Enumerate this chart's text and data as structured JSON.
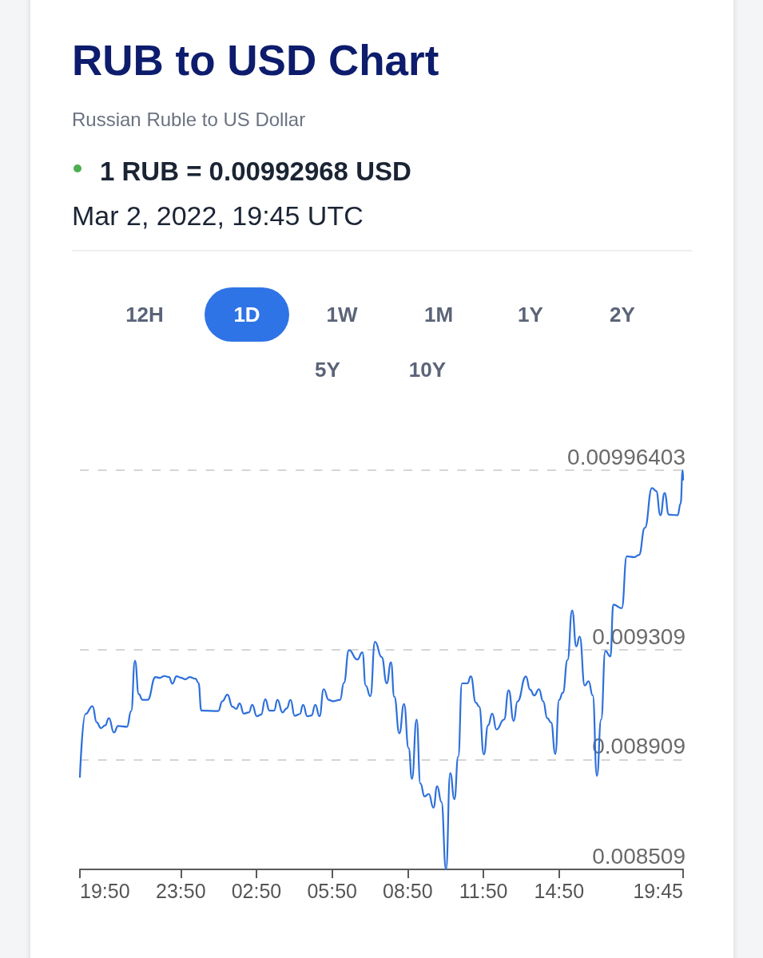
{
  "chart_data": {
    "type": "line",
    "title": "RUB to USD Chart",
    "subtitle": "Russian Ruble to US Dollar",
    "annotations": [
      "1 RUB = 0.00992968 USD",
      "Mar 2, 2022, 19:45 UTC",
      "12H",
      "1D",
      "1W",
      "1M",
      "1Y",
      "2Y",
      "5Y",
      "10Y"
    ],
    "x": [
      "2022-03-01T19:50",
      "2022-03-01T20:03",
      "2022-03-01T20:20",
      "2022-03-01T20:30",
      "2022-03-01T20:40",
      "2022-03-01T20:50",
      "2022-03-01T20:59",
      "2022-03-01T21:11",
      "2022-03-01T21:21",
      "2022-03-01T21:42",
      "2022-03-01T21:52",
      "2022-03-01T22:01",
      "2022-03-01T22:10",
      "2022-03-01T22:19",
      "2022-03-01T22:31",
      "2022-03-01T22:50",
      "2022-03-01T23:00",
      "2022-03-01T23:11",
      "2022-03-01T23:22",
      "2022-03-01T23:30",
      "2022-03-01T23:40",
      "2022-03-01T23:50",
      "2022-03-02T00:01",
      "2022-03-02T00:11",
      "2022-03-02T00:25",
      "2022-03-02T00:32",
      "2022-03-02T00:39",
      "2022-03-02T01:19",
      "2022-03-02T01:29",
      "2022-03-02T01:41",
      "2022-03-02T01:53",
      "2022-03-02T02:02",
      "2022-03-02T02:10",
      "2022-03-02T02:20",
      "2022-03-02T02:32",
      "2022-03-02T02:40",
      "2022-03-02T02:51",
      "2022-03-02T03:01",
      "2022-03-02T03:11",
      "2022-03-02T03:21",
      "2022-03-02T03:32",
      "2022-03-02T03:40",
      "2022-03-02T03:52",
      "2022-03-02T04:02",
      "2022-03-02T04:11",
      "2022-03-02T04:21",
      "2022-03-02T04:33",
      "2022-03-02T04:41",
      "2022-03-02T04:51",
      "2022-03-02T05:01",
      "2022-03-02T05:10",
      "2022-03-02T05:20",
      "2022-03-02T05:30",
      "2022-03-02T05:42",
      "2022-03-02T05:52",
      "2022-03-02T06:09",
      "2022-03-02T06:18",
      "2022-03-02T06:30",
      "2022-03-02T06:50",
      "2022-03-02T07:02",
      "2022-03-02T07:10",
      "2022-03-02T07:21",
      "2022-03-02T07:32",
      "2022-03-02T07:48",
      "2022-03-02T08:00",
      "2022-03-02T08:10",
      "2022-03-02T08:18",
      "2022-03-02T08:30",
      "2022-03-02T08:41",
      "2022-03-02T08:52",
      "2022-03-02T09:00",
      "2022-03-02T09:11",
      "2022-03-02T09:20",
      "2022-03-02T09:30",
      "2022-03-02T09:40",
      "2022-03-02T09:51",
      "2022-03-02T10:00",
      "2022-03-02T10:10",
      "2022-03-02T10:21",
      "2022-03-02T10:31",
      "2022-03-02T10:41",
      "2022-03-02T10:50",
      "2022-03-02T10:59",
      "2022-03-02T11:12",
      "2022-03-02T11:20",
      "2022-03-02T11:32",
      "2022-03-02T11:40",
      "2022-03-02T11:51",
      "2022-03-02T12:01",
      "2022-03-02T12:11",
      "2022-03-02T12:21",
      "2022-03-02T12:39",
      "2022-03-02T12:50",
      "2022-03-02T13:02",
      "2022-03-02T13:11",
      "2022-03-02T13:31",
      "2022-03-02T13:41",
      "2022-03-02T13:51",
      "2022-03-02T14:02",
      "2022-03-02T14:12",
      "2022-03-02T14:22",
      "2022-03-02T14:31",
      "2022-03-02T14:41",
      "2022-03-02T14:50",
      "2022-03-02T14:59",
      "2022-03-02T15:10",
      "2022-03-02T15:21",
      "2022-03-02T15:31",
      "2022-03-02T15:39",
      "2022-03-02T15:51",
      "2022-03-02T16:00",
      "2022-03-02T16:10",
      "2022-03-02T16:20",
      "2022-03-02T16:30",
      "2022-03-02T16:40",
      "2022-03-02T16:52",
      "2022-03-02T16:59",
      "2022-03-02T17:19",
      "2022-03-02T17:31",
      "2022-03-02T17:49",
      "2022-03-02T18:00",
      "2022-03-02T18:14",
      "2022-03-02T18:31",
      "2022-03-02T18:41",
      "2022-03-02T18:51",
      "2022-03-02T19:01",
      "2022-03-02T19:11",
      "2022-03-02T19:32",
      "2022-03-02T19:39",
      "2022-03-02T19:44",
      "2022-03-02T19:45"
    ],
    "values": [
      0.008846,
      0.009075,
      0.009104,
      0.009045,
      0.009024,
      0.009034,
      0.00906,
      0.009008,
      0.009032,
      0.009029,
      0.009086,
      0.00927,
      0.009148,
      0.009127,
      0.009127,
      0.00921,
      0.009207,
      0.009214,
      0.00921,
      0.009186,
      0.009213,
      0.009208,
      0.009202,
      0.00921,
      0.009204,
      0.009189,
      0.009088,
      0.009086,
      0.009122,
      0.009146,
      0.009102,
      0.009094,
      0.009114,
      0.009077,
      0.009081,
      0.009109,
      0.009067,
      0.009073,
      0.009129,
      0.009088,
      0.009088,
      0.009127,
      0.009081,
      0.009096,
      0.009127,
      0.009069,
      0.009075,
      0.009109,
      0.009067,
      0.00907,
      0.009109,
      0.009067,
      0.009166,
      0.009127,
      0.009122,
      0.009127,
      0.009189,
      0.009308,
      0.009274,
      0.0093,
      0.009179,
      0.00914,
      0.009339,
      0.009283,
      0.009187,
      0.009264,
      0.009138,
      0.009005,
      0.009112,
      0.008951,
      0.008839,
      0.009055,
      0.008822,
      0.008775,
      0.008784,
      0.008734,
      0.008812,
      0.008755,
      0.008509,
      0.00886,
      0.008765,
      0.00892,
      0.009187,
      0.009187,
      0.009213,
      0.009117,
      0.009102,
      0.008928,
      0.009034,
      0.009077,
      0.009019,
      0.009055,
      0.009162,
      0.00905,
      0.009121,
      0.009212,
      0.009164,
      0.009143,
      0.009166,
      0.009122,
      0.00906,
      0.009044,
      0.00893,
      0.009127,
      0.009153,
      0.009272,
      0.009453,
      0.009322,
      0.009358,
      0.009179,
      0.009195,
      0.009143,
      0.00885,
      0.009055,
      0.009305,
      0.009285,
      0.009474,
      0.009461,
      0.00965,
      0.009647,
      0.009655,
      0.009754,
      0.009899,
      0.009888,
      0.0098,
      0.009881,
      0.009802,
      0.0098,
      0.009842,
      0.00996403,
      0.00992968
    ],
    "color": "#2d6fdb",
    "xlim": [
      "2022-03-01T19:50",
      "2022-03-02T19:45"
    ],
    "xticks": [
      {
        "value": "2022-03-01T19:50",
        "label": "19:50"
      },
      {
        "value": "2022-03-01T23:50",
        "label": "23:50"
      },
      {
        "value": "2022-03-02T02:50",
        "label": "02:50"
      },
      {
        "value": "2022-03-02T05:50",
        "label": "05:50"
      },
      {
        "value": "2022-03-02T08:50",
        "label": "08:50"
      },
      {
        "value": "2022-03-02T11:50",
        "label": "11:50"
      },
      {
        "value": "2022-03-02T14:50",
        "label": "14:50"
      },
      {
        "value": "2022-03-02T19:45",
        "label": "19:45"
      }
    ],
    "ylim": [
      0.008509,
      0.00996403
    ],
    "yticks": [
      0.008509,
      0.008909,
      0.009309,
      0.00996403
    ],
    "grid": "y"
  }
}
